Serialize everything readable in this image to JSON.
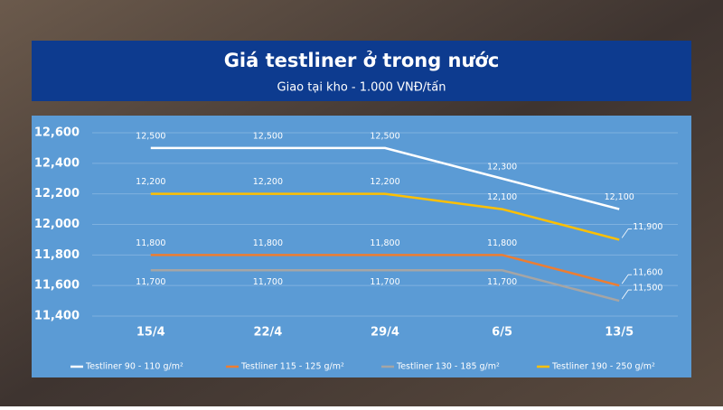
{
  "chart_data": {
    "type": "line",
    "title": "Giá testliner ở trong nước",
    "subtitle": "Giao tại kho - 1.000 VNĐ/tấn",
    "categories": [
      "15/4",
      "22/4",
      "29/4",
      "6/5",
      "13/5"
    ],
    "series": [
      {
        "name": "Testliner 90 - 110 g/m²",
        "color": "#ffffff",
        "values": [
          12500,
          12500,
          12500,
          12300,
          12100
        ],
        "value_labels": [
          "12,500",
          "12,500",
          "12,500",
          "12,300",
          "12,100"
        ]
      },
      {
        "name": "Testliner 115 - 125 g/m²",
        "color": "#ed7d31",
        "values": [
          11800,
          11800,
          11800,
          11800,
          11600
        ],
        "value_labels": [
          "11,800",
          "11,800",
          "11,800",
          "11,800",
          "11,600"
        ]
      },
      {
        "name": "Testliner 130 - 185 g/m²",
        "color": "#a5a5a5",
        "values": [
          11700,
          11700,
          11700,
          11700,
          11500
        ],
        "value_labels": [
          "11,700",
          "11,700",
          "11,700",
          "11,700",
          "11,500"
        ]
      },
      {
        "name": "Testliner 190 - 250 g/m²",
        "color": "#ffc000",
        "values": [
          12200,
          12200,
          12200,
          12100,
          11900
        ],
        "value_labels": [
          "12,200",
          "12,200",
          "12,200",
          "12,100",
          "11,900"
        ]
      }
    ],
    "ylim": [
      11400,
      12600
    ],
    "yticks": [
      {
        "value": 11400,
        "label": "11,400"
      },
      {
        "value": 11600,
        "label": "11,600"
      },
      {
        "value": 11800,
        "label": "11,800"
      },
      {
        "value": 12000,
        "label": "12,000"
      },
      {
        "value": 12200,
        "label": "12,200"
      },
      {
        "value": 12400,
        "label": "12,400"
      },
      {
        "value": 12600,
        "label": "12,600"
      }
    ],
    "grid": true
  }
}
